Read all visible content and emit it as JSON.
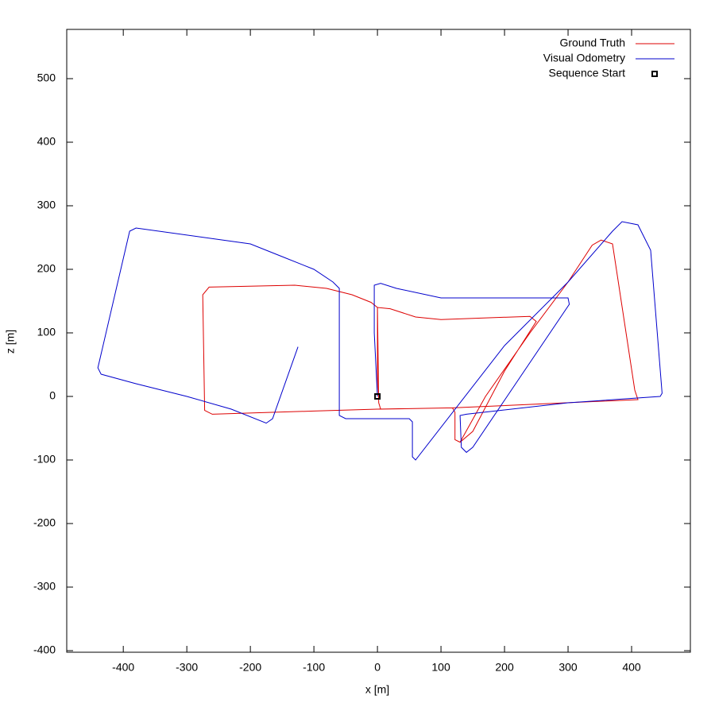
{
  "chart_data": {
    "type": "line",
    "xlabel": "x [m]",
    "ylabel": "z [m]",
    "xlim": [
      -489,
      492.5
    ],
    "ylim": [
      -402.5,
      577.5
    ],
    "xticks": [
      -400,
      -300,
      -200,
      -100,
      0,
      100,
      200,
      300,
      400
    ],
    "yticks": [
      -400,
      -300,
      -200,
      -100,
      0,
      100,
      200,
      300,
      400,
      500
    ],
    "grid": false,
    "legend": "top-right",
    "series": [
      {
        "name": "Ground Truth",
        "color": "#dd0000",
        "x": [
          0,
          0,
          20,
          60,
          100,
          240,
          250,
          200,
          150,
          130,
          122,
          122,
          118,
          0,
          -100,
          -260,
          -272,
          -275,
          -265,
          -130,
          -80,
          -40,
          -10,
          0,
          2,
          5,
          118,
          410,
          405,
          370,
          352,
          338,
          300,
          240,
          170,
          130
        ],
        "values": [
          0,
          140,
          138,
          125,
          121,
          126,
          118,
          40,
          -55,
          -72,
          -68,
          -25,
          -18,
          -20,
          -23,
          -28,
          -22,
          160,
          172,
          175,
          170,
          160,
          148,
          140,
          -10,
          -20,
          -18,
          -5,
          10,
          240,
          246,
          238,
          180,
          100,
          0,
          -72
        ]
      },
      {
        "name": "Visual Odometry",
        "color": "#0000cc",
        "x": [
          0,
          -5,
          -5,
          5,
          30,
          100,
          300,
          302,
          150,
          140,
          132,
          130,
          140,
          300,
          445,
          448,
          430,
          410,
          385,
          370,
          300,
          200,
          60,
          55,
          55,
          50,
          -50,
          -60,
          -60,
          -70,
          -100,
          -150,
          -200,
          -380,
          -390,
          -440,
          -435,
          -380,
          -300,
          -230,
          -175,
          -165,
          -125
        ],
        "values": [
          0,
          100,
          175,
          178,
          170,
          155,
          155,
          145,
          -80,
          -88,
          -80,
          -30,
          -28,
          -10,
          0,
          5,
          230,
          270,
          275,
          260,
          180,
          80,
          -100,
          -95,
          -40,
          -35,
          -35,
          -30,
          170,
          180,
          200,
          220,
          240,
          265,
          260,
          45,
          35,
          20,
          0,
          -20,
          -42,
          -35,
          78
        ]
      },
      {
        "name": "Sequence Start",
        "color": "#000000",
        "marker": "square",
        "x": [
          0
        ],
        "values": [
          0
        ]
      }
    ]
  }
}
